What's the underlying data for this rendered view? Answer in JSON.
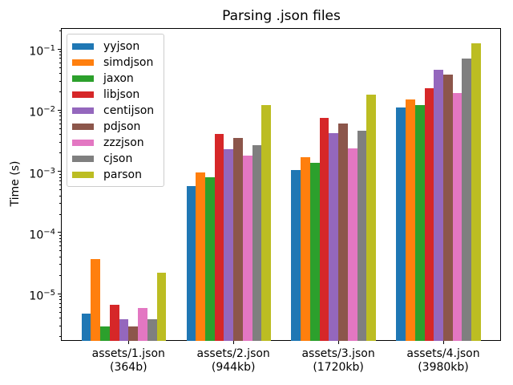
{
  "chart_data": {
    "type": "bar",
    "title": "Parsing .json files",
    "ylabel": "Time (s)",
    "xlabel": "",
    "yscale": "log",
    "ylim": [
      1.7e-06,
      0.22
    ],
    "grid": false,
    "legend_position": "upper left",
    "categories": [
      {
        "file": "assets/1.json",
        "size": "(364b)"
      },
      {
        "file": "assets/2.json",
        "size": "(944kb)"
      },
      {
        "file": "assets/3.json",
        "size": "(1720kb)"
      },
      {
        "file": "assets/4.json",
        "size": "(3980kb)"
      }
    ],
    "yticks": [
      {
        "value": 1e-05,
        "base": "10",
        "sup": "−5"
      },
      {
        "value": 0.0001,
        "base": "10",
        "sup": "−4"
      },
      {
        "value": 0.001,
        "base": "10",
        "sup": "−3"
      },
      {
        "value": 0.01,
        "base": "10",
        "sup": "−2"
      },
      {
        "value": 0.1,
        "base": "10",
        "sup": "−1"
      }
    ],
    "series": [
      {
        "name": "yyjson",
        "color": "#1f77b4",
        "values": [
          4.8e-06,
          0.00057,
          0.00105,
          0.011
        ]
      },
      {
        "name": "simdjson",
        "color": "#ff7f0e",
        "values": [
          3.7e-05,
          0.00097,
          0.0017,
          0.015
        ]
      },
      {
        "name": "jaxon",
        "color": "#2ca02c",
        "values": [
          2.9e-06,
          0.00081,
          0.0014,
          0.012
        ]
      },
      {
        "name": "libjson",
        "color": "#d62728",
        "values": [
          6.7e-06,
          0.0041,
          0.0074,
          0.023
        ]
      },
      {
        "name": "centijson",
        "color": "#9467bd",
        "values": [
          3.8e-06,
          0.0023,
          0.0042,
          0.046
        ]
      },
      {
        "name": "pdjson",
        "color": "#8c564b",
        "values": [
          2.9e-06,
          0.0035,
          0.006,
          0.038
        ]
      },
      {
        "name": "zzzjson",
        "color": "#e377c2",
        "values": [
          5.9e-06,
          0.0018,
          0.0024,
          0.019
        ]
      },
      {
        "name": "cjson",
        "color": "#7f7f7f",
        "values": [
          3.8e-06,
          0.0027,
          0.0046,
          0.07
        ]
      },
      {
        "name": "parson",
        "color": "#bcbd22",
        "values": [
          2.2e-05,
          0.012,
          0.018,
          0.125
        ]
      }
    ]
  },
  "colors": {
    "spine": "#000000",
    "legend_border": "#cccccc",
    "background": "#ffffff"
  }
}
